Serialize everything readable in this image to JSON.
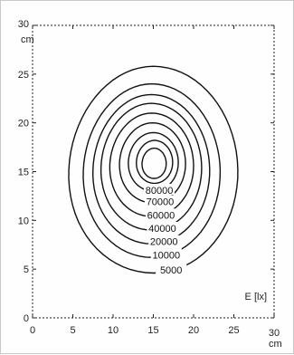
{
  "chart_data": {
    "type": "contour",
    "title": "",
    "xlabel": "",
    "ylabel": "",
    "x_unit": "cm",
    "y_unit": "cm",
    "quantity_label": "E [lx]",
    "xlim": [
      0,
      30
    ],
    "ylim": [
      0,
      30
    ],
    "x_ticks": [
      "0",
      "5",
      "10",
      "15",
      "20",
      "25",
      "30"
    ],
    "y_ticks": [
      "0",
      "5",
      "10",
      "15",
      "20",
      "25",
      "30"
    ],
    "grid": false,
    "center": [
      15,
      15.5
    ],
    "line_color": "#111111",
    "contours": [
      {
        "level": "5000",
        "x_min": 4.5,
        "x_max": 25.5,
        "y_min": 4.6,
        "y_max": 25.8
      },
      {
        "level": "10000",
        "x_min": 6.3,
        "x_max": 23.3,
        "y_min": 6.2,
        "y_max": 24.0
      },
      {
        "level": "20000",
        "x_min": 7.5,
        "x_max": 22.0,
        "y_min": 7.6,
        "y_max": 22.9
      },
      {
        "level": "40000",
        "x_min": 8.5,
        "x_max": 21.0,
        "y_min": 9.0,
        "y_max": 22.0
      },
      {
        "level": "60000",
        "x_min": 9.6,
        "x_max": 20.0,
        "y_min": 10.4,
        "y_max": 21.0
      },
      {
        "level": "70000",
        "x_min": 10.8,
        "x_max": 19.0,
        "y_min": 11.8,
        "y_max": 20.0
      },
      {
        "level": "80000",
        "x_min": 11.9,
        "x_max": 18.1,
        "y_min": 13.0,
        "y_max": 19.0
      },
      {
        "level": "",
        "x_min": 12.9,
        "x_max": 17.4,
        "y_min": 13.8,
        "y_max": 18.2
      },
      {
        "level": "",
        "x_min": 13.6,
        "x_max": 16.6,
        "y_min": 14.3,
        "y_max": 17.4
      }
    ]
  }
}
